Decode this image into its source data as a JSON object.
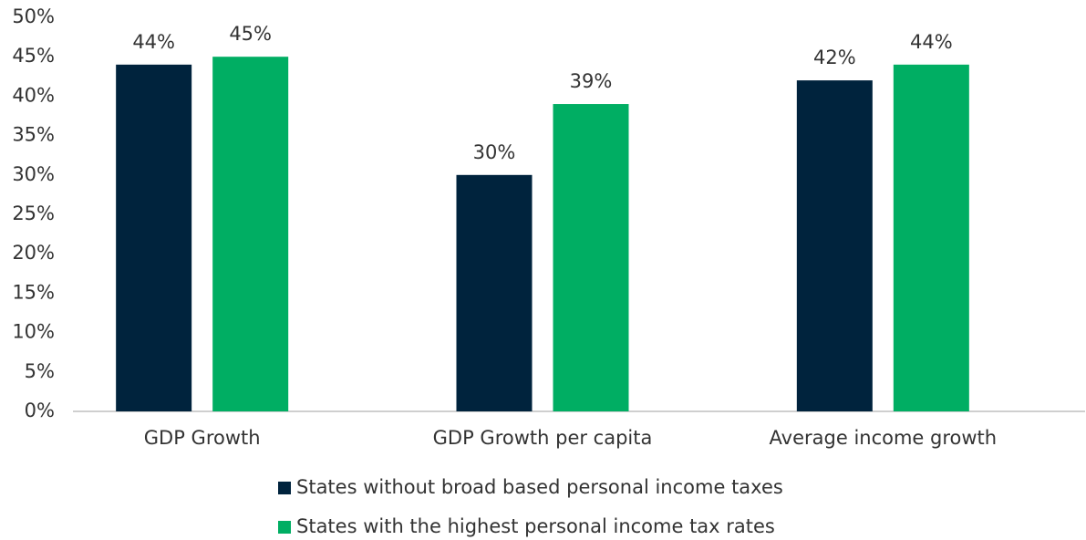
{
  "chart_data": {
    "type": "bar",
    "categories": [
      "GDP Growth",
      "GDP Growth per capita",
      "Average income growth"
    ],
    "series": [
      {
        "name": "States without broad based personal income taxes",
        "color": "#00233d",
        "values": [
          44,
          30,
          42
        ],
        "value_labels": [
          "44%",
          "30%",
          "42%"
        ]
      },
      {
        "name": "States with the highest personal income tax rates",
        "color": "#00ae63",
        "values": [
          45,
          39,
          44
        ],
        "value_labels": [
          "45%",
          "39%",
          "44%"
        ]
      }
    ],
    "ylim": [
      0,
      50
    ],
    "yticks": [
      {
        "value": 0,
        "label": "0%"
      },
      {
        "value": 5,
        "label": "5%"
      },
      {
        "value": 10,
        "label": "10%"
      },
      {
        "value": 15,
        "label": "15%"
      },
      {
        "value": 20,
        "label": "20%"
      },
      {
        "value": 25,
        "label": "25%"
      },
      {
        "value": 30,
        "label": "30%"
      },
      {
        "value": 35,
        "label": "35%"
      },
      {
        "value": 40,
        "label": "40%"
      },
      {
        "value": 45,
        "label": "45%"
      },
      {
        "value": 50,
        "label": "50%"
      }
    ],
    "grid": false,
    "legend": "bottom"
  }
}
